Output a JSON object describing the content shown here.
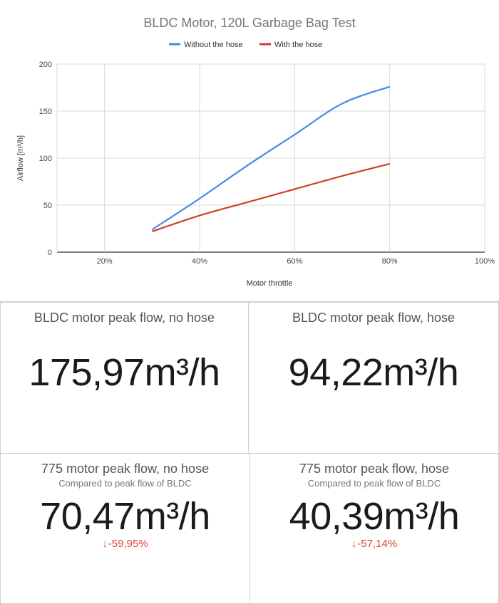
{
  "chart_data": {
    "type": "line",
    "title": "BLDC Motor, 120L Garbage Bag Test",
    "xlabel": "Motor throttle",
    "ylabel": "Airflow [m³/h]",
    "xlim": [
      0.1,
      1.0
    ],
    "ylim": [
      0,
      200
    ],
    "x_ticks": [
      0.2,
      0.4,
      0.6,
      0.8,
      1.0
    ],
    "x_tick_labels": [
      "20%",
      "40%",
      "60%",
      "80%",
      "100%"
    ],
    "y_ticks": [
      0,
      50,
      100,
      150,
      200
    ],
    "y_tick_labels": [
      "0",
      "50",
      "100",
      "150",
      "200"
    ],
    "grid": true,
    "legend_position": "top",
    "series": [
      {
        "name": "Without the hose",
        "color": "#4a86e8",
        "x": [
          0.3,
          0.4,
          0.5,
          0.6,
          0.7,
          0.8
        ],
        "values": [
          24,
          57,
          92,
          125,
          158,
          176
        ]
      },
      {
        "name": "With the hose",
        "color": "#cc4125",
        "x": [
          0.3,
          0.4,
          0.5,
          0.6,
          0.7,
          0.8
        ],
        "values": [
          22,
          39,
          53,
          67,
          81,
          94
        ]
      }
    ]
  },
  "cards": {
    "bldc_no_hose": {
      "title": "BLDC motor peak flow, no hose",
      "value": "175,97m³/h"
    },
    "bldc_hose": {
      "title": "BLDC motor peak flow, hose",
      "value": "94,22m³/h"
    },
    "m775_no_hose": {
      "title": "775 motor peak flow, no hose",
      "subtitle": "Compared to peak flow of BLDC",
      "value": "70,47m³/h",
      "delta": "-59,95%",
      "delta_color": "#d9443a"
    },
    "m775_hose": {
      "title": "775 motor peak flow, hose",
      "subtitle": "Compared to peak flow of BLDC",
      "value": "40,39m³/h",
      "delta": "-57,14%",
      "delta_color": "#d9443a"
    }
  }
}
